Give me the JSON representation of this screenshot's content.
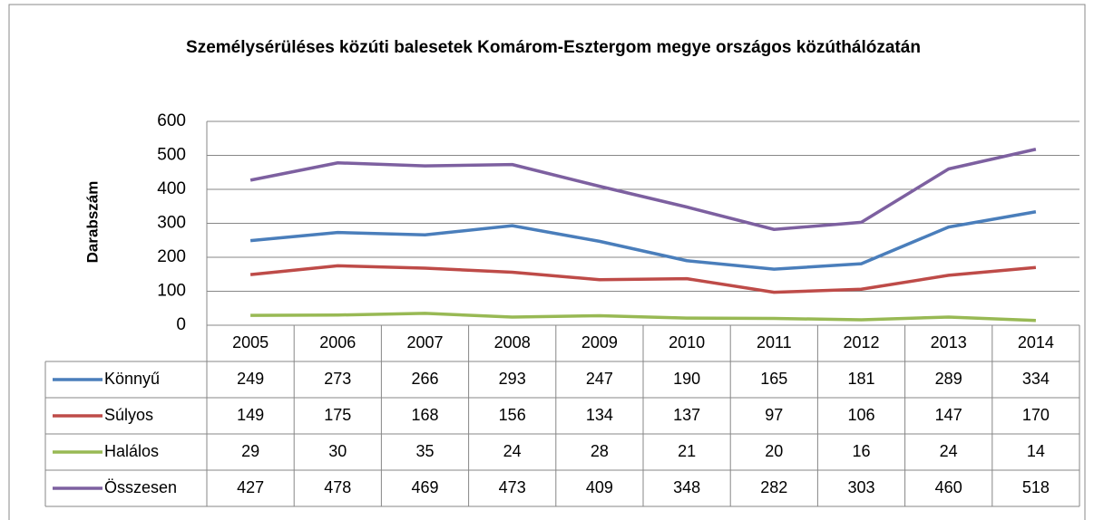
{
  "chart_data": {
    "type": "line",
    "title": "Személysérüléses közúti balesetek Komárom-Esztergom megye országos közúthálózatán",
    "y_label": "Darabszám",
    "categories": [
      "2005",
      "2006",
      "2007",
      "2008",
      "2009",
      "2010",
      "2011",
      "2012",
      "2013",
      "2014"
    ],
    "series": [
      {
        "name": "Könnyű",
        "color": "#4a7ebb",
        "values": [
          249,
          273,
          266,
          293,
          247,
          190,
          165,
          181,
          289,
          334
        ]
      },
      {
        "name": "Súlyos",
        "color": "#be4b48",
        "values": [
          149,
          175,
          168,
          156,
          134,
          137,
          97,
          106,
          147,
          170
        ]
      },
      {
        "name": "Halálos",
        "color": "#98b954",
        "values": [
          29,
          30,
          35,
          24,
          28,
          21,
          20,
          16,
          24,
          14
        ]
      },
      {
        "name": "Összesen",
        "color": "#7d60a0",
        "values": [
          427,
          478,
          469,
          473,
          409,
          348,
          282,
          303,
          460,
          518
        ]
      }
    ],
    "ylim": [
      0,
      600
    ],
    "yticks": [
      0,
      100,
      200,
      300,
      400,
      500,
      600
    ],
    "grid": true,
    "data_table": true
  }
}
